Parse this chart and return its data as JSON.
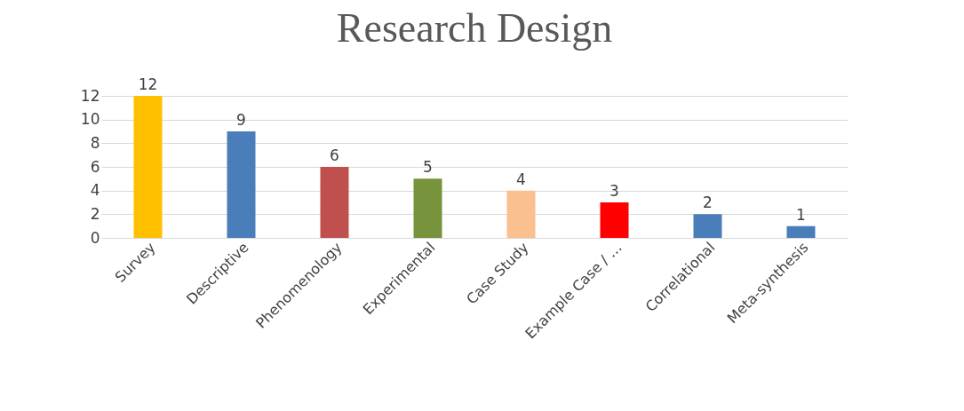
{
  "chart_data": {
    "type": "bar",
    "title": "Research Design",
    "categories": [
      "Survey",
      "Descriptive",
      "Phenomenology",
      "Experimental",
      "Case Study",
      "Example Case / …",
      "Correlational",
      "Meta-synthesis"
    ],
    "values": [
      12,
      9,
      6,
      5,
      4,
      3,
      2,
      1
    ],
    "colors": [
      "#ffc000",
      "#4a7ebb",
      "#c0504d",
      "#77933c",
      "#fac090",
      "#ff0000",
      "#4a7ebb",
      "#4a7ebb"
    ],
    "ylim": [
      0,
      12
    ],
    "yticks": [
      0,
      2,
      4,
      6,
      8,
      10,
      12
    ],
    "grid": "y",
    "data_labels": true
  }
}
